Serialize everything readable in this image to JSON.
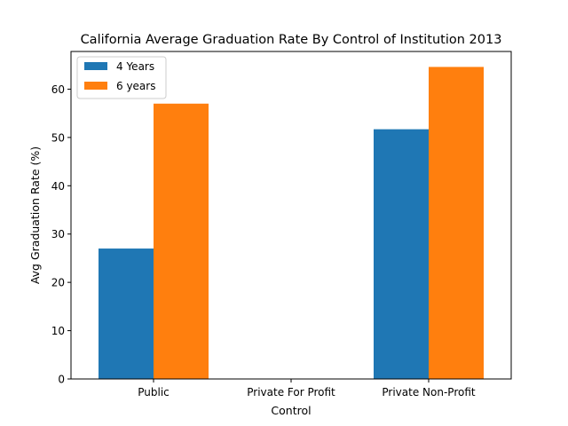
{
  "chart_data": {
    "type": "bar",
    "title": "California Average Graduation Rate By Control of Institution 2013",
    "xlabel": "Control",
    "ylabel": "Avg Graduation Rate (%)",
    "categories": [
      "Public",
      "Private For Profit",
      "Private Non-Profit"
    ],
    "series": [
      {
        "name": "4 Years",
        "color": "#1f77b4",
        "values": [
          27.0,
          0,
          51.7
        ]
      },
      {
        "name": "6 years",
        "color": "#ff7f0e",
        "values": [
          57.0,
          0,
          64.6
        ]
      }
    ],
    "ylim": [
      0,
      67.8
    ],
    "yticks": [
      0,
      10,
      20,
      30,
      40,
      50,
      60
    ],
    "legend": "top-left",
    "grid": false
  }
}
